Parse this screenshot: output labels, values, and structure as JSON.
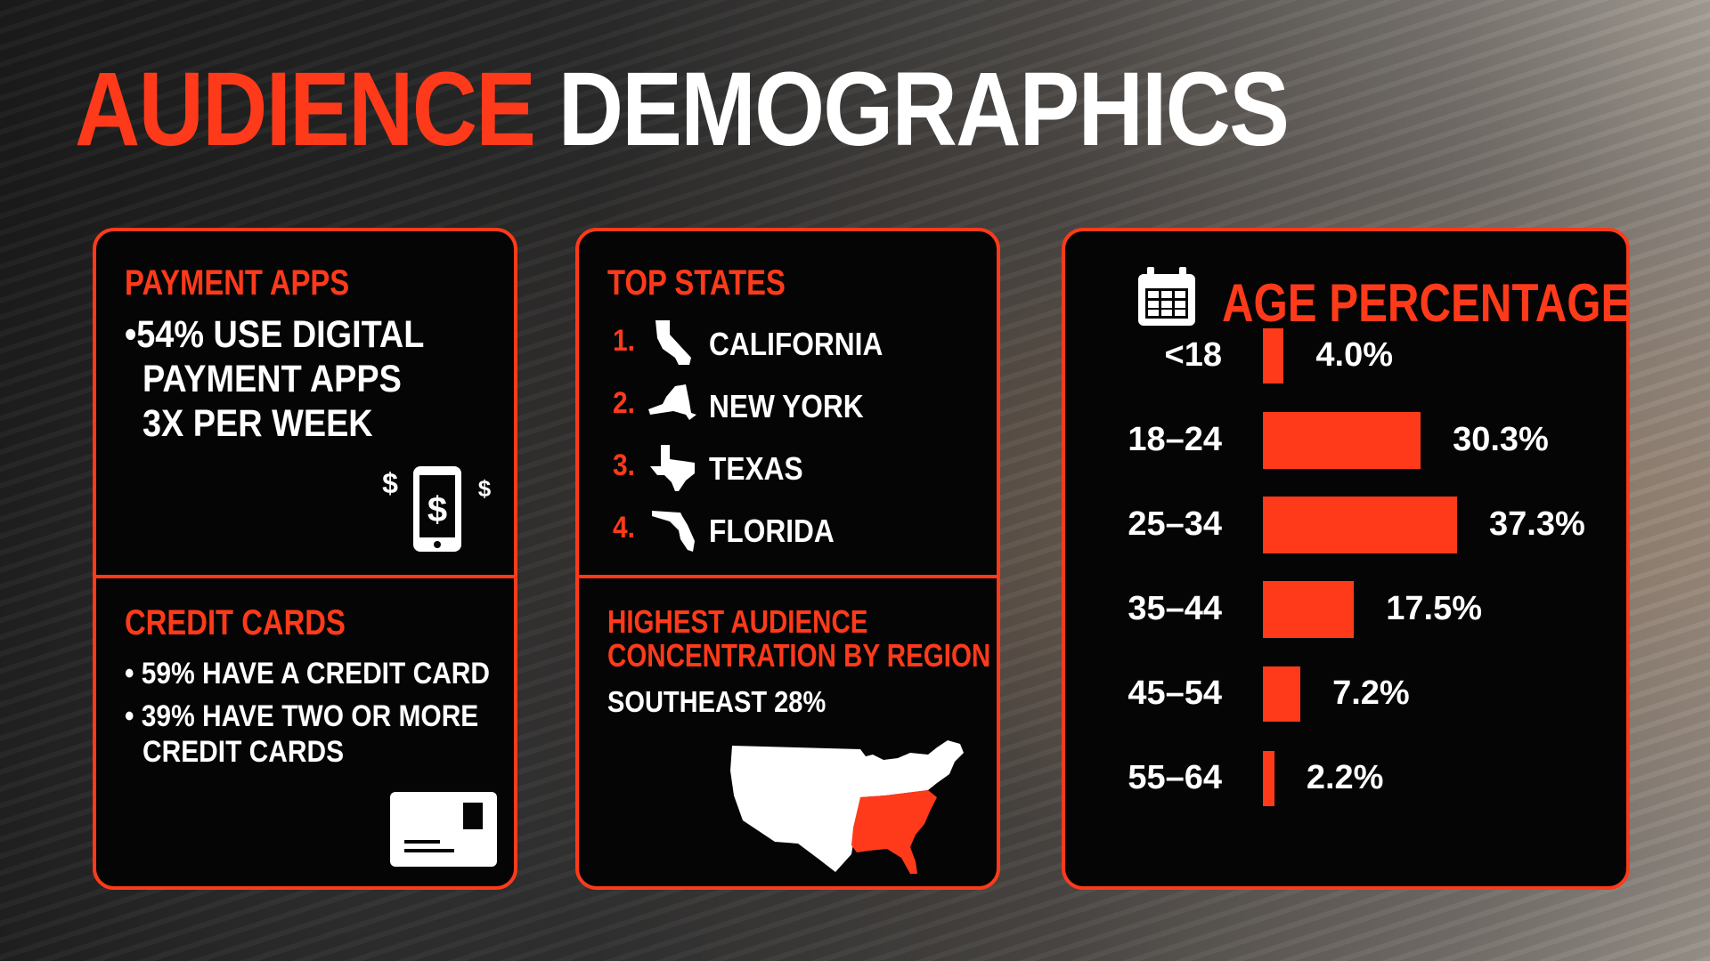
{
  "title": {
    "part1": "AUDIENCE",
    "part2": "DEMOGRAPHICS"
  },
  "payment": {
    "heading": "PAYMENT APPS",
    "bullet_lines": [
      "•54% USE DIGITAL",
      "PAYMENT APPS",
      "3X PER WEEK"
    ],
    "icon": "phone-dollar-icon"
  },
  "credit": {
    "heading": "CREDIT CARDS",
    "bullets": [
      "• 59% HAVE A CREDIT CARD",
      "• 39% HAVE TWO OR MORE",
      "CREDIT CARDS"
    ],
    "icon": "credit-card-icon"
  },
  "states": {
    "heading": "TOP STATES",
    "items": [
      {
        "rank": "1.",
        "name": "CALIFORNIA",
        "icon": "california-icon"
      },
      {
        "rank": "2.",
        "name": "NEW YORK",
        "icon": "new-york-icon"
      },
      {
        "rank": "3.",
        "name": "TEXAS",
        "icon": "texas-icon"
      },
      {
        "rank": "4.",
        "name": "FLORIDA",
        "icon": "florida-icon"
      }
    ]
  },
  "region": {
    "heading_lines": [
      "HIGHEST AUDIENCE",
      "CONCENTRATION BY REGION"
    ],
    "value": "SOUTHEAST 28%",
    "icon": "us-map-icon"
  },
  "colors": {
    "accent": "#ff3a1a",
    "card": "#050505",
    "text": "#ffffff"
  },
  "chart_data": {
    "type": "bar",
    "orientation": "horizontal",
    "title": "AGE PERCENTAGE",
    "title_icon": "calendar-icon",
    "categories": [
      "<18",
      "18–24",
      "25–34",
      "35–44",
      "45–54",
      "55–64"
    ],
    "values": [
      4.0,
      30.3,
      37.3,
      17.5,
      7.2,
      2.2
    ],
    "value_labels": [
      "4.0%",
      "30.3%",
      "37.3%",
      "17.5%",
      "7.2%",
      "2.2%"
    ],
    "unit": "%",
    "xlim": [
      0,
      37.3
    ],
    "grid": false,
    "legend": "none"
  }
}
